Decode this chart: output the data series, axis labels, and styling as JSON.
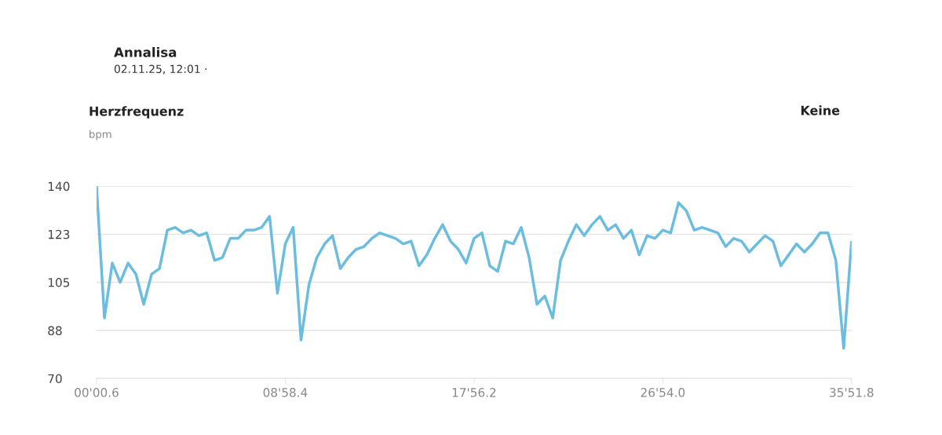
{
  "chart_data": {
    "type": "line",
    "title": "Annalisa",
    "subtitle": "02.11.25, 12:01 ·",
    "annotations": [
      "Herzfrequenz",
      "bpm",
      "Keine"
    ],
    "categories": [
      "00'00.6",
      null,
      null,
      null,
      null,
      null,
      null,
      null,
      null,
      null,
      null,
      null,
      null,
      null,
      null,
      null,
      null,
      null,
      null,
      null,
      null,
      null,
      null,
      null,
      "08'58.4",
      null,
      null,
      null,
      null,
      null,
      null,
      null,
      null,
      null,
      null,
      null,
      null,
      null,
      null,
      null,
      null,
      null,
      null,
      null,
      null,
      null,
      null,
      null,
      "17'56.2",
      null,
      null,
      null,
      null,
      null,
      null,
      null,
      null,
      null,
      null,
      null,
      null,
      null,
      null,
      null,
      null,
      null,
      null,
      null,
      null,
      null,
      null,
      null,
      "26'54.0",
      null,
      null,
      null,
      null,
      null,
      null,
      null,
      null,
      null,
      null,
      null,
      null,
      null,
      null,
      null,
      null,
      null,
      null,
      null,
      null,
      null,
      null,
      null,
      "35'51.8"
    ],
    "series": [
      {
        "color": "#6bbde0",
        "values": [
          140,
          92,
          112,
          105,
          112,
          108,
          97,
          108,
          110,
          124,
          125,
          123,
          124,
          122,
          123,
          113,
          114,
          121,
          121,
          124,
          124,
          125,
          129,
          101,
          119,
          125,
          84,
          104,
          114,
          119,
          122,
          110,
          114,
          117,
          118,
          121,
          123,
          122,
          121,
          119,
          120,
          111,
          115,
          121,
          126,
          120,
          117,
          112,
          121,
          123,
          111,
          109,
          120,
          119,
          125,
          114,
          97,
          100,
          92,
          113,
          120,
          126,
          122,
          126,
          129,
          124,
          126,
          121,
          124,
          115,
          122,
          121,
          124,
          123,
          134,
          131,
          124,
          125,
          124,
          123,
          118,
          121,
          120,
          116,
          119,
          122,
          120,
          111,
          115,
          119,
          116,
          119,
          123,
          123,
          113,
          81,
          120
        ]
      }
    ],
    "ylim": [
      70,
      140
    ],
    "yticks": [
      70,
      {
        "value": 87.5,
        "label": "88"
      },
      105,
      {
        "value": 122.5,
        "label": "123"
      },
      140
    ],
    "grid": "y",
    "marker": "none",
    "line_style": "solid"
  }
}
